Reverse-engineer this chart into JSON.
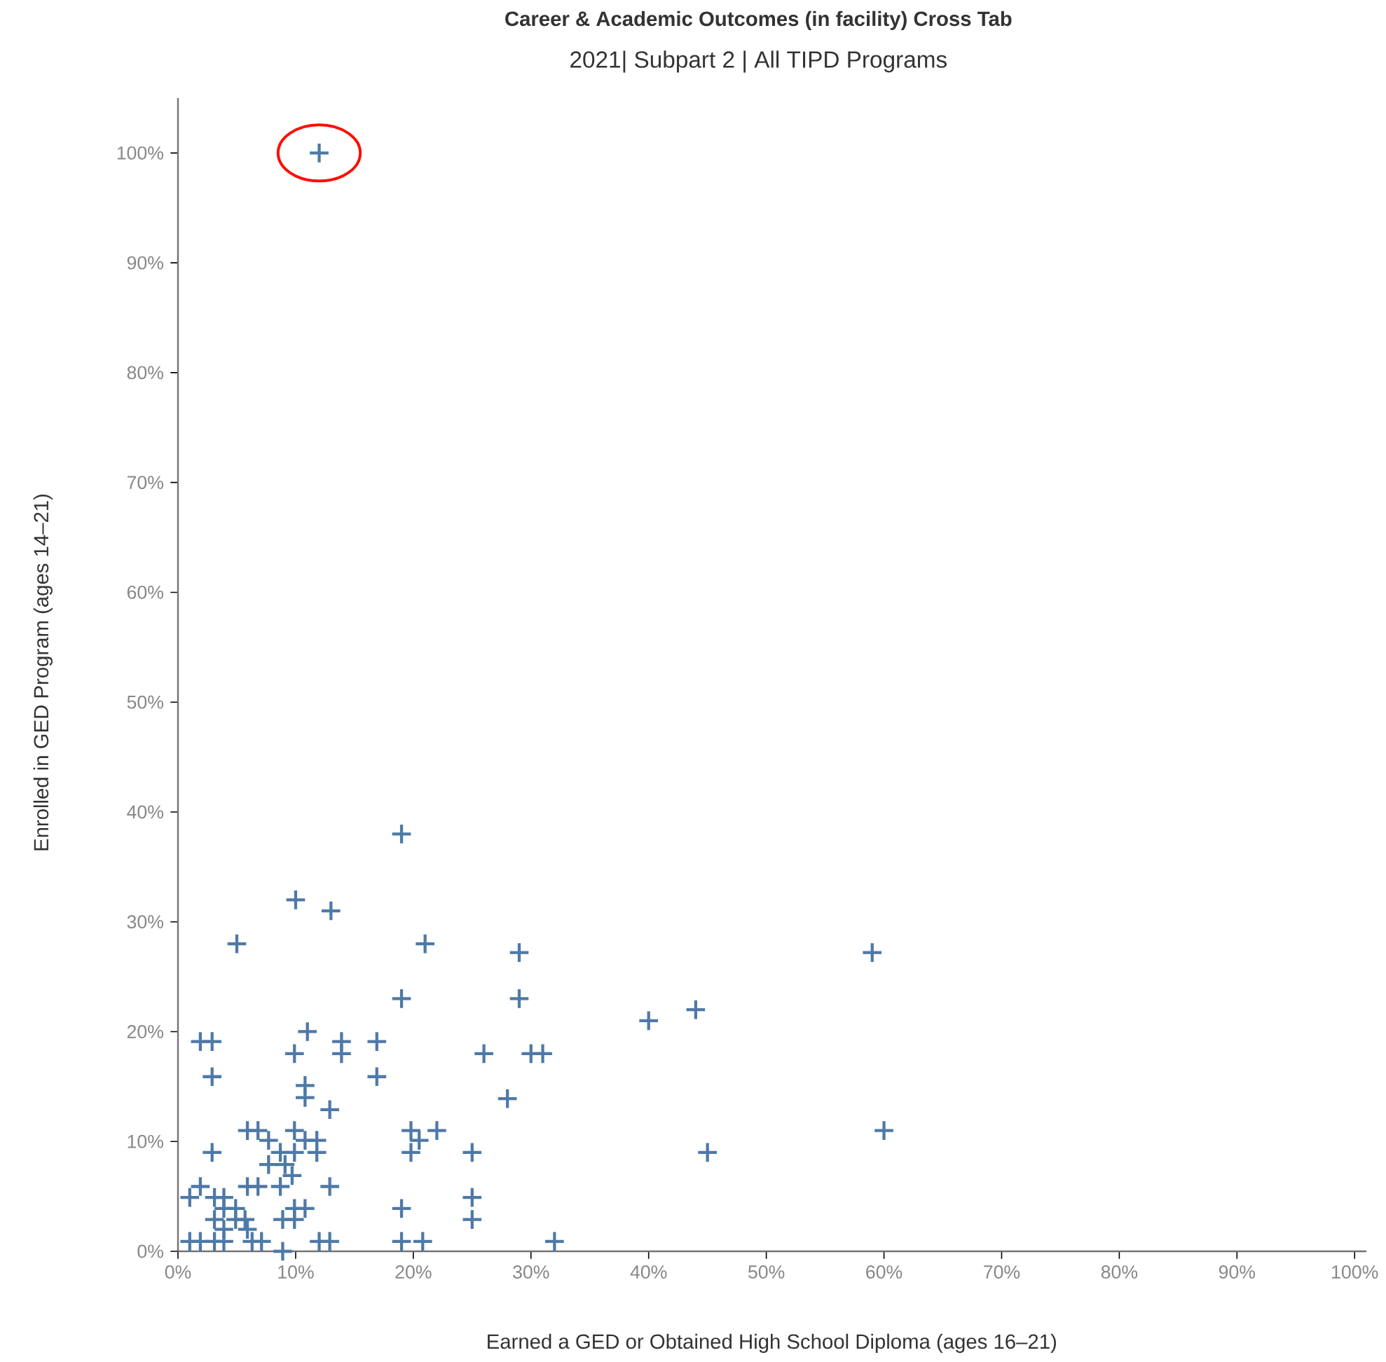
{
  "chart_data": {
    "type": "scatter",
    "title": "Career & Academic Outcomes (in facility) Cross Tab",
    "subtitle": "2021| Subpart 2 | All TIPD Programs",
    "xlabel": "Earned a GED or Obtained High School Diploma (ages 16–21)",
    "ylabel": "Enrolled in GED Program (ages 14–21)",
    "marker": "cross",
    "grid": false,
    "xlim": [
      0,
      101
    ],
    "ylim": [
      0,
      105
    ],
    "xticks": [
      {
        "value": 0,
        "label": "0%"
      },
      {
        "value": 10,
        "label": "10%"
      },
      {
        "value": 20,
        "label": "20%"
      },
      {
        "value": 30,
        "label": "30%"
      },
      {
        "value": 40,
        "label": "40%"
      },
      {
        "value": 50,
        "label": "50%"
      },
      {
        "value": 60,
        "label": "60%"
      },
      {
        "value": 70,
        "label": "70%"
      },
      {
        "value": 80,
        "label": "80%"
      },
      {
        "value": 90,
        "label": "90%"
      },
      {
        "value": 100,
        "label": "100%"
      }
    ],
    "yticks": [
      {
        "value": 0,
        "label": "0%"
      },
      {
        "value": 10,
        "label": "10%"
      },
      {
        "value": 20,
        "label": "20%"
      },
      {
        "value": 30,
        "label": "30%"
      },
      {
        "value": 40,
        "label": "40%"
      },
      {
        "value": 50,
        "label": "50%"
      },
      {
        "value": 60,
        "label": "60%"
      },
      {
        "value": 70,
        "label": "70%"
      },
      {
        "value": 80,
        "label": "80%"
      },
      {
        "value": 90,
        "label": "90%"
      },
      {
        "value": 100,
        "label": "100%"
      }
    ],
    "series": [
      {
        "color": "#4e79a7",
        "x": [
          12,
          19,
          10,
          13,
          5,
          21,
          19,
          11,
          1.9,
          2.9,
          9.9,
          13.9,
          13.9,
          16.9,
          26,
          2.9,
          10.8,
          10.8,
          16.9,
          12.9,
          28,
          5.9,
          6.8,
          9.9,
          19.8,
          22,
          7.7,
          10.8,
          11.8,
          20.5,
          2.9,
          8.7,
          9.9,
          11.8,
          19.8,
          25,
          7.7,
          9.1,
          9.7,
          1.9,
          5.9,
          6.8,
          8.7,
          12.9,
          1,
          3.1,
          3.9,
          3.9,
          4.9,
          9.9,
          10.8,
          19,
          25,
          3.1,
          4.9,
          5.7,
          8.9,
          9.9,
          25,
          3.9,
          5.9,
          1,
          1.9,
          3.1,
          3.9,
          6.3,
          7.1,
          12,
          12.9,
          19,
          20.8,
          8.9,
          29,
          59,
          29,
          40,
          44,
          30,
          31,
          60,
          45,
          32
        ],
        "values": [
          100,
          38,
          32,
          31,
          28,
          28,
          23,
          20,
          19.1,
          19.1,
          18,
          19.1,
          18,
          19.1,
          18,
          15.9,
          15.1,
          14,
          15.9,
          12.9,
          13.9,
          11,
          11,
          11,
          11,
          11,
          10.1,
          10.1,
          10.1,
          10.1,
          9,
          9,
          9,
          9,
          9,
          9,
          7.9,
          7.9,
          6.9,
          5.9,
          5.9,
          5.9,
          5.9,
          5.9,
          4.9,
          4.9,
          4.9,
          3.9,
          3.9,
          3.9,
          3.9,
          3.9,
          4.9,
          2.9,
          2.9,
          2.9,
          2.9,
          2.9,
          2.9,
          2,
          2,
          0.9,
          0.9,
          0.9,
          0.9,
          0.9,
          0.9,
          0.9,
          0.9,
          0.9,
          0.9,
          0,
          27.2,
          27.2,
          23,
          21,
          22,
          18,
          18,
          11,
          9,
          0.9
        ]
      }
    ]
  }
}
